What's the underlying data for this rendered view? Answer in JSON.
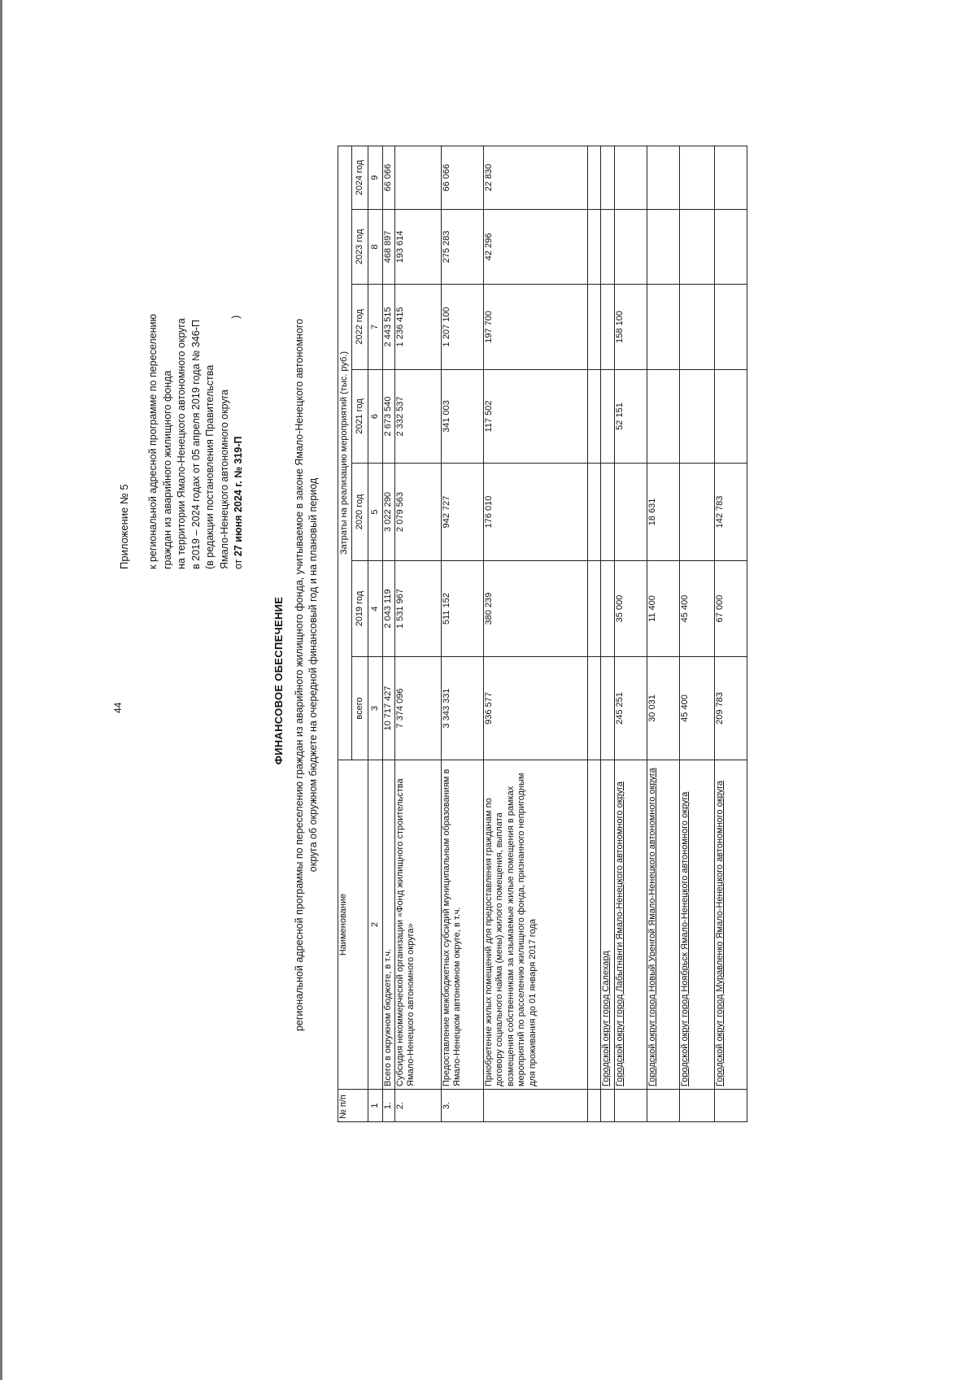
{
  "page_number": "44",
  "appendix": {
    "title": "Приложение № 5",
    "lines": [
      "к региональной  адресной программе по переселению",
      "граждан из аварийного жилищного фонда",
      "на территории Ямало-Ненецкого автономного округа",
      "в 2019  –  2024 годах от 05 апреля 2019 года № 346-П",
      "(в редакции постановления Правительства",
      "Ямало-Ненецкого автономного округа"
    ],
    "date_prefix": "от",
    "date": "27 июня 2024 г. № 319-П",
    "closing_paren": ")"
  },
  "document": {
    "title": "ФИНАНСОВОЕ ОБЕСПЕЧЕНИЕ",
    "subtitle_1": "региональной адресной программы по переселению граждан из аварийного жилищного фонда, учитываемое в законе Ямало-Ненецкого автономного",
    "subtitle_2": "округа об окружном бюджете на очередной финансовый год и на плановый период"
  },
  "table": {
    "header_num": "№ п/п",
    "header_name": "Наименование",
    "header_costs": "Затраты на реализацию мероприятий (тыс. руб.)",
    "header_years": [
      "всего",
      "2019 год",
      "2020 год",
      "2021 год",
      "2022 год",
      "2023 год",
      "2024 год"
    ],
    "column_numbers": [
      "1",
      "2",
      "3",
      "4",
      "5",
      "6",
      "7",
      "8",
      "9"
    ],
    "rows": [
      {
        "num": "1.",
        "name": "Всего в окружном бюджете, в т.ч.",
        "values": [
          "10 717 427",
          "2 043 119",
          "3 022 290",
          "2 673 540",
          "2 443 515",
          "468 897",
          "66 066"
        ]
      },
      {
        "num": "2.",
        "name": "Субсидия некоммерческой организации «Фонд жилищного строительства Ямало-Ненецкого автономного округа»",
        "values": [
          "7 374 096",
          "1 531 967",
          "2 079 563",
          "2 332 537",
          "1 236 415",
          "193 614",
          ""
        ]
      },
      {
        "num": "3.",
        "name": "Предоставление межбюджетных субсидий муниципальным образованиям в Ямало-Ненецком автономном округе, в т.ч.",
        "values": [
          "3 343 331",
          "511 152",
          "942 727",
          "341 003",
          "1 207 100",
          "275 283",
          "66 066"
        ]
      },
      {
        "num": "",
        "name": "Приобретение жилых помещений для предоставления гражданам по договору социального найма (мены) жилого помещения, выплата возмещения собственникам за изымаемые жилые помещения в рамках мероприятий по расселению жилищного фонда, признанного непригодным для проживания до 01 января 2017 года",
        "values": [
          "936 577",
          "380 239",
          "176 010",
          "117 502",
          "197 700",
          "42 296",
          "22 830"
        ]
      },
      {
        "num": "",
        "name": "",
        "values": [
          "",
          "",
          "",
          "",
          "",
          "",
          ""
        ]
      },
      {
        "num": "",
        "name": "Городской округ город Салехард",
        "values": [
          "",
          "",
          "",
          "",
          "",
          "",
          ""
        ]
      },
      {
        "num": "",
        "name": "Городской округ город Лабытнанги Ямало-Ненецкого автономного округа",
        "values": [
          "245 251",
          "35 000",
          "",
          "52 151",
          "158 100",
          "",
          ""
        ]
      },
      {
        "num": "",
        "name": "Городской округ город Новый Уренгой Ямало-Ненецкого автономного округа",
        "values": [
          "30 031",
          "11 400",
          "18 631",
          "",
          "",
          "",
          ""
        ]
      },
      {
        "num": "",
        "name": "Городской округ город Ноябрьск Ямало-Ненецкого автономного округа",
        "values": [
          "45 400",
          "45 400",
          "",
          "",
          "",
          "",
          ""
        ]
      },
      {
        "num": "",
        "name": "Городской округ город Муравленко Ямало-Ненецкого автономного округа",
        "values": [
          "209 783",
          "67 000",
          "142 783",
          "",
          "",
          "",
          ""
        ]
      }
    ]
  }
}
